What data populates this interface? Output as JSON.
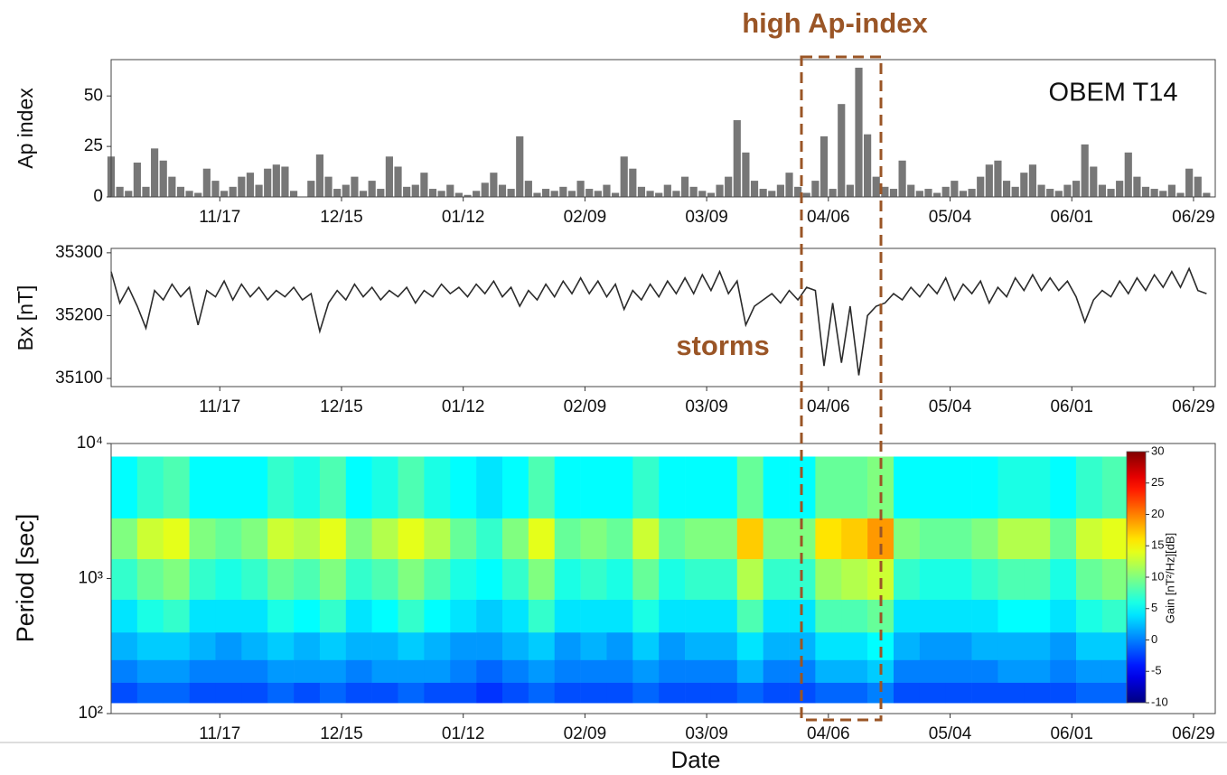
{
  "chart_data": [
    {
      "type": "bar",
      "ylabel": "Ap index",
      "label": "OBEM T14",
      "annotation": "high Ap-index",
      "color": "#777777",
      "x": [
        0,
        2,
        4,
        6,
        8,
        10,
        12,
        14,
        16,
        18,
        20,
        22,
        24,
        26,
        28,
        30,
        32,
        34,
        36,
        38,
        40,
        42,
        44,
        46,
        48,
        50,
        52,
        54,
        56,
        58,
        60,
        62,
        64,
        66,
        68,
        70,
        72,
        74,
        76,
        78,
        80,
        82,
        84,
        86,
        88,
        90,
        92,
        94,
        96,
        98,
        100,
        102,
        104,
        106,
        108,
        110,
        112,
        114,
        116,
        118,
        120,
        122,
        124,
        126,
        128,
        130,
        132,
        134,
        136,
        138,
        140,
        142,
        144,
        146,
        148,
        150,
        152,
        154,
        156,
        158,
        160,
        162,
        164,
        166,
        168,
        170,
        172,
        174,
        176,
        178,
        180,
        182,
        184,
        186,
        188,
        190,
        192,
        194,
        196,
        198,
        200,
        202,
        204,
        206,
        208,
        210,
        212,
        214,
        216,
        218,
        220,
        222,
        224,
        226,
        228,
        230,
        232,
        234,
        236,
        238,
        240,
        242,
        244,
        246,
        248,
        250,
        252
      ],
      "values": [
        20,
        5,
        3,
        17,
        5,
        24,
        18,
        10,
        5,
        3,
        2,
        14,
        8,
        3,
        5,
        10,
        12,
        6,
        14,
        16,
        15,
        3,
        0,
        8,
        21,
        10,
        4,
        6,
        10,
        3,
        8,
        4,
        20,
        15,
        5,
        6,
        12,
        4,
        3,
        6,
        2,
        1,
        3,
        7,
        12,
        6,
        4,
        30,
        8,
        2,
        4,
        3,
        5,
        3,
        8,
        4,
        3,
        6,
        2,
        20,
        14,
        5,
        3,
        2,
        6,
        3,
        10,
        5,
        3,
        2,
        6,
        10,
        38,
        22,
        8,
        4,
        3,
        6,
        12,
        5,
        2,
        8,
        30,
        4,
        46,
        6,
        64,
        31,
        10,
        5,
        4,
        18,
        6,
        3,
        4,
        2,
        5,
        8,
        3,
        4,
        10,
        16,
        18,
        8,
        5,
        12,
        16,
        6,
        4,
        3,
        6,
        8,
        26,
        15,
        6,
        4,
        8,
        22,
        10,
        5,
        4,
        3,
        6,
        2,
        14,
        10,
        2
      ],
      "xlim": [
        0,
        254
      ],
      "ylim": [
        0,
        68
      ],
      "yticks": [
        0,
        25,
        50
      ],
      "xticks": [
        {
          "value": 25,
          "label": "11/17"
        },
        {
          "value": 53,
          "label": "12/15"
        },
        {
          "value": 81,
          "label": "01/12"
        },
        {
          "value": 109,
          "label": "02/09"
        },
        {
          "value": 137,
          "label": "03/09"
        },
        {
          "value": 165,
          "label": "04/06"
        },
        {
          "value": 193,
          "label": "05/04"
        },
        {
          "value": 221,
          "label": "06/01"
        },
        {
          "value": 249,
          "label": "06/29"
        }
      ]
    },
    {
      "type": "line",
      "ylabel": "Bx [nT]",
      "annotation": "storms",
      "color": "#2b2b2b",
      "x": [
        0,
        2,
        4,
        6,
        8,
        10,
        12,
        14,
        16,
        18,
        20,
        22,
        24,
        26,
        28,
        30,
        32,
        34,
        36,
        38,
        40,
        42,
        44,
        46,
        48,
        50,
        52,
        54,
        56,
        58,
        60,
        62,
        64,
        66,
        68,
        70,
        72,
        74,
        76,
        78,
        80,
        82,
        84,
        86,
        88,
        90,
        92,
        94,
        96,
        98,
        100,
        102,
        104,
        106,
        108,
        110,
        112,
        114,
        116,
        118,
        120,
        122,
        124,
        126,
        128,
        130,
        132,
        134,
        136,
        138,
        140,
        142,
        144,
        146,
        148,
        150,
        152,
        154,
        156,
        158,
        160,
        162,
        164,
        166,
        168,
        170,
        172,
        174,
        176,
        178,
        180,
        182,
        184,
        186,
        188,
        190,
        192,
        194,
        196,
        198,
        200,
        202,
        204,
        206,
        208,
        210,
        212,
        214,
        216,
        218,
        220,
        222,
        224,
        226,
        228,
        230,
        232,
        234,
        236,
        238,
        240,
        242,
        244,
        246,
        248,
        250,
        252
      ],
      "values": [
        35270,
        35220,
        35245,
        35215,
        35180,
        35240,
        35225,
        35250,
        35230,
        35245,
        35185,
        35240,
        35230,
        35255,
        35225,
        35250,
        35230,
        35245,
        35225,
        35240,
        35230,
        35245,
        35225,
        35235,
        35175,
        35220,
        35240,
        35225,
        35250,
        35230,
        35245,
        35225,
        35240,
        35230,
        35245,
        35220,
        35240,
        35230,
        35250,
        35235,
        35245,
        35230,
        35250,
        35235,
        35255,
        35230,
        35245,
        35215,
        35240,
        35225,
        35250,
        35230,
        35255,
        35235,
        35260,
        35235,
        35255,
        35230,
        35250,
        35210,
        35240,
        35225,
        35250,
        35230,
        35255,
        35235,
        35260,
        35235,
        35265,
        35240,
        35270,
        35235,
        35255,
        35185,
        35215,
        35225,
        35235,
        35220,
        35240,
        35225,
        35245,
        35240,
        35120,
        35220,
        35125,
        35215,
        35105,
        35200,
        35215,
        35220,
        35235,
        35225,
        35245,
        35230,
        35250,
        35235,
        35260,
        35225,
        35250,
        35235,
        35255,
        35220,
        35245,
        35230,
        35260,
        35240,
        35265,
        35240,
        35260,
        35240,
        35255,
        35230,
        35190,
        35225,
        35240,
        35230,
        35255,
        35235,
        35260,
        35240,
        35265,
        35245,
        35270,
        35245,
        35275,
        35240,
        35235
      ],
      "xlim": [
        0,
        254
      ],
      "ylim": [
        35087,
        35307
      ],
      "yticks": [
        35100,
        35200,
        35300
      ],
      "xticks": [
        {
          "value": 25,
          "label": "11/17"
        },
        {
          "value": 53,
          "label": "12/15"
        },
        {
          "value": 81,
          "label": "01/12"
        },
        {
          "value": 109,
          "label": "02/09"
        },
        {
          "value": 137,
          "label": "03/09"
        },
        {
          "value": 165,
          "label": "04/06"
        },
        {
          "value": 193,
          "label": "05/04"
        },
        {
          "value": 221,
          "label": "06/01"
        },
        {
          "value": 249,
          "label": "06/29"
        }
      ]
    },
    {
      "type": "heatmap",
      "ylabel": "Period [sec]",
      "xlabel": "Date",
      "ylog": true,
      "xbins": [
        0,
        6,
        12,
        18,
        24,
        30,
        36,
        42,
        48,
        54,
        60,
        66,
        72,
        78,
        84,
        90,
        96,
        102,
        108,
        114,
        120,
        126,
        132,
        138,
        144,
        150,
        156,
        162,
        168,
        174,
        180,
        186,
        192,
        198,
        204,
        210,
        216,
        222,
        228,
        234
      ],
      "ybins": [
        120,
        170,
        250,
        400,
        700,
        1400,
        2800,
        8000
      ],
      "z": [
        [
          -2,
          -1,
          -1,
          -2,
          -2,
          -2,
          -1,
          -2,
          -1,
          -2,
          -2,
          -1,
          -2,
          -2,
          -3,
          -2,
          -1,
          -2,
          -2,
          -2,
          -1,
          -2,
          -2,
          -2,
          -1,
          -2,
          -2,
          -1,
          -1,
          0,
          -2,
          -2,
          -2,
          -2,
          -2,
          -2,
          -2,
          -1,
          -1
        ],
        [
          0,
          1,
          1,
          0,
          0,
          0,
          1,
          1,
          1,
          0,
          1,
          1,
          1,
          0,
          -1,
          0,
          1,
          0,
          0,
          0,
          1,
          0,
          0,
          0,
          2,
          0,
          0,
          2,
          2,
          3,
          0,
          0,
          0,
          0,
          1,
          1,
          0,
          1,
          1
        ],
        [
          2,
          3,
          3,
          2,
          1,
          2,
          3,
          2,
          3,
          2,
          2,
          3,
          2,
          1,
          1,
          2,
          3,
          1,
          2,
          1,
          3,
          1,
          2,
          2,
          4,
          2,
          2,
          4,
          4,
          5,
          2,
          1,
          1,
          2,
          2,
          2,
          1,
          3,
          3
        ],
        [
          4,
          6,
          7,
          4,
          4,
          4,
          6,
          5,
          7,
          4,
          5,
          7,
          5,
          4,
          3,
          4,
          7,
          4,
          4,
          4,
          6,
          4,
          4,
          4,
          8,
          4,
          4,
          8,
          8,
          9,
          4,
          4,
          4,
          4,
          5,
          5,
          4,
          6,
          7
        ],
        [
          7,
          9,
          10,
          7,
          6,
          7,
          9,
          8,
          10,
          7,
          8,
          10,
          8,
          6,
          5,
          7,
          10,
          6,
          7,
          6,
          9,
          6,
          7,
          7,
          12,
          7,
          7,
          11,
          12,
          13,
          7,
          6,
          6,
          7,
          8,
          8,
          6,
          9,
          10
        ],
        [
          10,
          13,
          14,
          10,
          9,
          10,
          13,
          12,
          14,
          10,
          12,
          14,
          12,
          9,
          7,
          10,
          14,
          9,
          10,
          9,
          13,
          9,
          10,
          10,
          17,
          10,
          10,
          16,
          17,
          19,
          10,
          9,
          9,
          10,
          12,
          12,
          9,
          13,
          14
        ],
        [
          5,
          7,
          8,
          5,
          5,
          5,
          7,
          6,
          8,
          5,
          6,
          8,
          6,
          5,
          4,
          5,
          8,
          5,
          5,
          5,
          7,
          5,
          5,
          5,
          9,
          5,
          5,
          9,
          9,
          10,
          5,
          5,
          5,
          5,
          6,
          6,
          5,
          7,
          8
        ]
      ],
      "xlim": [
        0,
        254
      ],
      "ylim": [
        100,
        10000
      ],
      "yticks": [
        {
          "value": 100,
          "label": "10²"
        },
        {
          "value": 1000,
          "label": "10³"
        },
        {
          "value": 10000,
          "label": "10⁴"
        }
      ],
      "xticks": [
        {
          "value": 25,
          "label": "11/17"
        },
        {
          "value": 53,
          "label": "12/15"
        },
        {
          "value": 81,
          "label": "01/12"
        },
        {
          "value": 109,
          "label": "02/09"
        },
        {
          "value": 137,
          "label": "03/09"
        },
        {
          "value": 165,
          "label": "04/06"
        },
        {
          "value": 193,
          "label": "05/04"
        },
        {
          "value": 221,
          "label": "06/01"
        },
        {
          "value": 249,
          "label": "06/29"
        }
      ],
      "colorbar": {
        "label": "Gain [nT²/Hz][dB]",
        "lim": [
          -10,
          30
        ],
        "ticks": [
          -10,
          -5,
          0,
          5,
          10,
          15,
          20,
          25,
          30
        ]
      }
    }
  ]
}
